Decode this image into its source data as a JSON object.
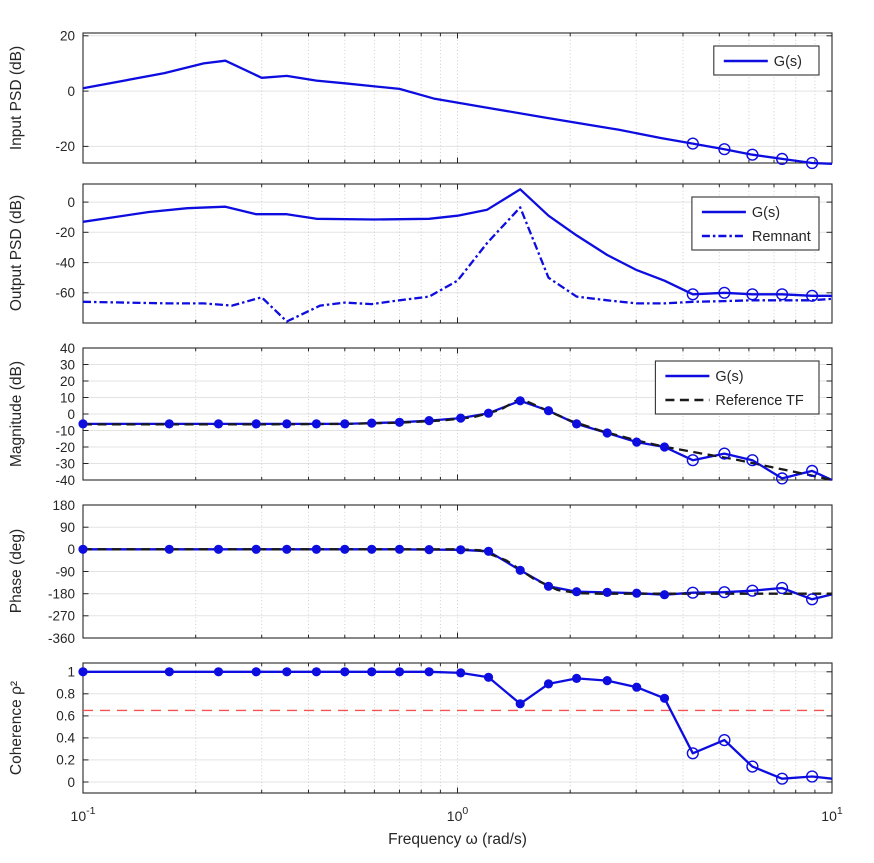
{
  "figure": {
    "xlabel": "Frequency ω (rad/s)",
    "xlim": [
      0.1,
      10
    ],
    "x_scale": "log",
    "xticks": [
      {
        "value": 0.1,
        "base": "10",
        "exp": "-1",
        "label": "10⁻¹"
      },
      {
        "value": 1,
        "base": "10",
        "exp": "0",
        "label": "10⁰"
      },
      {
        "value": 10,
        "base": "10",
        "exp": "1",
        "label": "10¹"
      }
    ],
    "colors": {
      "blue": "#0d0de0",
      "black": "#1a1a1a",
      "red": "#f45353",
      "axis": "#262626",
      "grid_v": "#c9c9c9",
      "grid_h": "#e3e3e3",
      "text": "#262626",
      "legend_border": "#333333",
      "background": "#ffffff"
    }
  },
  "chart_data": [
    {
      "id": "input-psd",
      "type": "line",
      "ylabel": "Input PSD (dB)",
      "ylim": [
        -26,
        21
      ],
      "yticks": [
        20,
        0,
        -20
      ],
      "ytick_labels": [
        "20",
        "0",
        "-20"
      ],
      "legend": [
        {
          "label": "G(s)",
          "color": "blue",
          "dash": "solid"
        }
      ],
      "series": [
        {
          "name": "G(s)",
          "color": "blue",
          "dash": "solid",
          "width": 2.3,
          "x": [
            0.1,
            0.165,
            0.21,
            0.24,
            0.3,
            0.35,
            0.42,
            0.5,
            0.7,
            0.87,
            1.2,
            1.7,
            2.7,
            3.5,
            4.25,
            5.16,
            6.13,
            7.36,
            8.85,
            10
          ],
          "y": [
            1,
            6.5,
            10,
            11,
            4.8,
            5.5,
            3.8,
            2.8,
            0.8,
            -2.8,
            -6,
            -9.5,
            -14,
            -17,
            -19,
            -21,
            -23,
            -24.5,
            -26,
            -26.3
          ],
          "filled_upto": -1,
          "open_idx": [
            14,
            15,
            16,
            17,
            18
          ]
        }
      ]
    },
    {
      "id": "output-psd",
      "type": "line",
      "ylabel": "Output PSD (dB)",
      "ylim": [
        -80,
        12
      ],
      "yticks": [
        0,
        -20,
        -40,
        -60
      ],
      "ytick_labels": [
        "0",
        "-20",
        "-40",
        "-60"
      ],
      "legend": [
        {
          "label": "G(s)",
          "color": "blue",
          "dash": "solid"
        },
        {
          "label": "Remnant",
          "color": "blue",
          "dash": "dashdot"
        }
      ],
      "series": [
        {
          "name": "G(s)",
          "color": "blue",
          "dash": "solid",
          "width": 2.3,
          "x": [
            0.1,
            0.15,
            0.19,
            0.24,
            0.29,
            0.35,
            0.42,
            0.6,
            0.84,
            1.0,
            1.2,
            1.47,
            1.75,
            2.08,
            2.51,
            3.01,
            3.57,
            4.25,
            5.16,
            6.13,
            7.36,
            8.85,
            10
          ],
          "y": [
            -13,
            -6.5,
            -4,
            -3,
            -8,
            -8,
            -11,
            -11.5,
            -11,
            -9,
            -5,
            8.5,
            -9,
            -22,
            -35,
            -45,
            -52,
            -61,
            -60,
            -61,
            -61,
            -62,
            -62
          ],
          "filled_upto": -1,
          "open_idx": [
            17,
            18,
            19,
            20,
            21
          ]
        },
        {
          "name": "Remnant",
          "color": "blue",
          "dash": "dashdot",
          "width": 2.3,
          "x": [
            0.1,
            0.17,
            0.21,
            0.25,
            0.3,
            0.35,
            0.43,
            0.5,
            0.59,
            0.7,
            0.84,
            1.0,
            1.2,
            1.47,
            1.75,
            2.08,
            2.51,
            3.01,
            3.57,
            4.25,
            5.16,
            6.13,
            7.36,
            8.85,
            10
          ],
          "y": [
            -66,
            -67,
            -67,
            -68.5,
            -63,
            -79,
            -68.5,
            -66.5,
            -67.5,
            -65,
            -62.5,
            -52,
            -27,
            -3.5,
            -50,
            -62.5,
            -65,
            -67,
            -67,
            -66,
            -65.5,
            -65,
            -65,
            -65,
            -64
          ],
          "filled_upto": -1,
          "open_idx": []
        }
      ]
    },
    {
      "id": "magnitude",
      "type": "line",
      "ylabel": "Magnitude (dB)",
      "ylim": [
        -40,
        40
      ],
      "yticks": [
        40,
        30,
        20,
        10,
        0,
        -10,
        -20,
        -30,
        -40
      ],
      "ytick_labels": [
        "40",
        "30",
        "20",
        "10",
        "0",
        "-10",
        "-20",
        "-30",
        "-40"
      ],
      "legend": [
        {
          "label": "G(s)",
          "color": "blue",
          "dash": "solid"
        },
        {
          "label": "Reference TF",
          "color": "black",
          "dash": "dash"
        }
      ],
      "series": [
        {
          "name": "G(s)",
          "color": "blue",
          "dash": "solid",
          "width": 2.3,
          "x": [
            0.1,
            0.17,
            0.23,
            0.29,
            0.35,
            0.42,
            0.5,
            0.59,
            0.7,
            0.84,
            1.02,
            1.21,
            1.47,
            1.75,
            2.08,
            2.51,
            3.01,
            3.57,
            4.25,
            5.16,
            6.13,
            7.36,
            8.85,
            10
          ],
          "y": [
            -6,
            -6,
            -6,
            -6,
            -6,
            -6,
            -6,
            -5.5,
            -5,
            -4,
            -2.5,
            0.5,
            8,
            2,
            -6,
            -11.5,
            -17,
            -20,
            -28,
            -24,
            -28,
            -39,
            -34.5,
            -40
          ],
          "filled_upto": 17,
          "open_idx": [
            18,
            19,
            20,
            21,
            22
          ]
        },
        {
          "name": "Reference TF",
          "color": "black",
          "dash": "dash",
          "width": 2.3,
          "x": [
            0.1,
            0.3,
            0.5,
            0.7,
            0.9,
            1.1,
            1.3,
            1.47,
            1.7,
            2.0,
            2.4,
            3.0,
            3.6,
            4.5,
            5.5,
            7,
            8.5,
            10
          ],
          "y": [
            -6.3,
            -6.3,
            -6,
            -5.3,
            -4,
            -2,
            2.5,
            9.5,
            3,
            -4,
            -10,
            -16,
            -20,
            -24,
            -27.5,
            -32.5,
            -36.5,
            -40
          ],
          "filled_upto": -1,
          "open_idx": []
        }
      ]
    },
    {
      "id": "phase",
      "type": "line",
      "ylabel": "Phase (deg)",
      "ylim": [
        -360,
        180
      ],
      "yticks": [
        180,
        90,
        0,
        -90,
        -180,
        -270,
        -360
      ],
      "ytick_labels": [
        "180",
        "90",
        "0",
        "-90",
        "-180",
        "-270",
        "-360"
      ],
      "legend": [],
      "series": [
        {
          "name": "G(s)",
          "color": "blue",
          "dash": "solid",
          "width": 2.3,
          "x": [
            0.1,
            0.17,
            0.23,
            0.29,
            0.35,
            0.42,
            0.5,
            0.59,
            0.7,
            0.84,
            1.02,
            1.21,
            1.47,
            1.75,
            2.08,
            2.51,
            3.01,
            3.57,
            4.25,
            5.16,
            6.13,
            7.36,
            8.85,
            10
          ],
          "y": [
            0,
            0,
            0,
            0,
            0,
            0,
            0,
            0,
            0,
            -1,
            -2,
            -8,
            -85,
            -150,
            -172,
            -175,
            -178,
            -184,
            -176,
            -174,
            -168,
            -157,
            -203,
            -183
          ],
          "filled_upto": 17,
          "open_idx": [
            18,
            19,
            20,
            21,
            22
          ]
        },
        {
          "name": "Reference TF",
          "color": "black",
          "dash": "dash",
          "width": 2.3,
          "x": [
            0.1,
            1.0,
            1.15,
            1.35,
            1.6,
            1.85,
            2.1,
            2.4,
            10
          ],
          "y": [
            0,
            0,
            -4,
            -45,
            -120,
            -165,
            -178,
            -180,
            -180
          ],
          "filled_upto": -1,
          "open_idx": []
        }
      ]
    },
    {
      "id": "coherence",
      "type": "line",
      "ylabel": "Coherence ρ²",
      "ylim": [
        -0.1,
        1.08
      ],
      "yticks": [
        1,
        0.8,
        0.6,
        0.4,
        0.2,
        0
      ],
      "ytick_labels": [
        "1",
        "0.8",
        "0.6",
        "0.4",
        "0.2",
        "0"
      ],
      "legend": [],
      "series": [
        {
          "name": "coherence-threshold",
          "color": "red",
          "dash": "reddash",
          "width": 1.4,
          "x": [
            0.1,
            10
          ],
          "y": [
            0.65,
            0.65
          ],
          "filled_upto": -1,
          "open_idx": []
        },
        {
          "name": "G(s)",
          "color": "blue",
          "dash": "solid",
          "width": 2.3,
          "x": [
            0.1,
            0.17,
            0.23,
            0.29,
            0.35,
            0.42,
            0.5,
            0.59,
            0.7,
            0.84,
            1.02,
            1.21,
            1.47,
            1.75,
            2.08,
            2.51,
            3.01,
            3.57,
            4.25,
            5.16,
            6.13,
            7.36,
            8.85,
            10
          ],
          "y": [
            1,
            1,
            1,
            1,
            1,
            1,
            1,
            1,
            1,
            1,
            0.99,
            0.95,
            0.71,
            0.89,
            0.94,
            0.92,
            0.86,
            0.76,
            0.26,
            0.38,
            0.14,
            0.03,
            0.05,
            0.03
          ],
          "filled_upto": 17,
          "open_idx": [
            18,
            19,
            20,
            21,
            22
          ]
        }
      ]
    }
  ]
}
